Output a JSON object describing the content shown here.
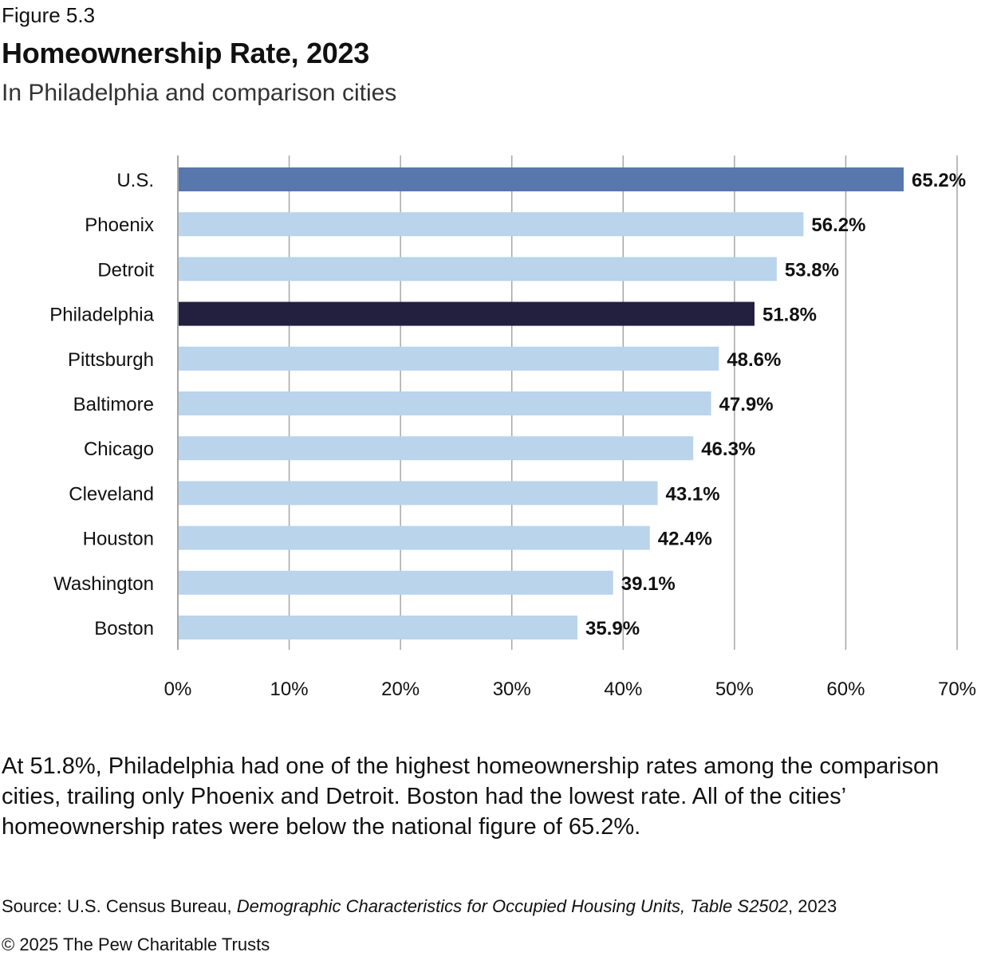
{
  "figure_label": "Figure 5.3",
  "colors": {
    "highlight_us": "#5877ad",
    "highlight_philadelphia": "#231f3f",
    "default_bar": "#b9d4eb",
    "gridline": "#a6a6a6"
  },
  "chart_data": {
    "type": "bar",
    "orientation": "horizontal",
    "title": "Homeownership Rate, 2023",
    "subtitle": "In Philadelphia and comparison cities",
    "xlabel": "",
    "ylabel": "",
    "xlim": [
      0,
      70
    ],
    "ticks": [
      0,
      10,
      20,
      30,
      40,
      50,
      60,
      70
    ],
    "tick_labels": [
      "0%",
      "10%",
      "20%",
      "30%",
      "40%",
      "50%",
      "60%",
      "70%"
    ],
    "grid": true,
    "categories": [
      "U.S.",
      "Phoenix",
      "Detroit",
      "Philadelphia",
      "Pittsburgh",
      "Baltimore",
      "Chicago",
      "Cleveland",
      "Houston",
      "Washington",
      "Boston"
    ],
    "values": [
      65.2,
      56.2,
      53.8,
      51.8,
      48.6,
      47.9,
      46.3,
      43.1,
      42.4,
      39.1,
      35.9
    ],
    "value_labels": [
      "65.2%",
      "56.2%",
      "53.8%",
      "51.8%",
      "48.6%",
      "47.9%",
      "46.3%",
      "43.1%",
      "42.4%",
      "39.1%",
      "35.9%"
    ],
    "highlight": {
      "U.S.": "highlight_us",
      "Philadelphia": "highlight_philadelphia"
    }
  },
  "caption": "At 51.8%, Philadelphia had one of the highest homeownership rates among the comparison cities, trailing only Phoenix and Detroit. Boston had the lowest rate. All of the cities’ homeownership rates were below the national figure of 65.2%.",
  "source": {
    "prefix": "Source: U.S. Census Bureau, ",
    "title_italic": "Demographic Characteristics for Occupied Housing Units, Table S2502",
    "suffix": ", 2023"
  },
  "copyright": "© 2025 The Pew Charitable Trusts"
}
